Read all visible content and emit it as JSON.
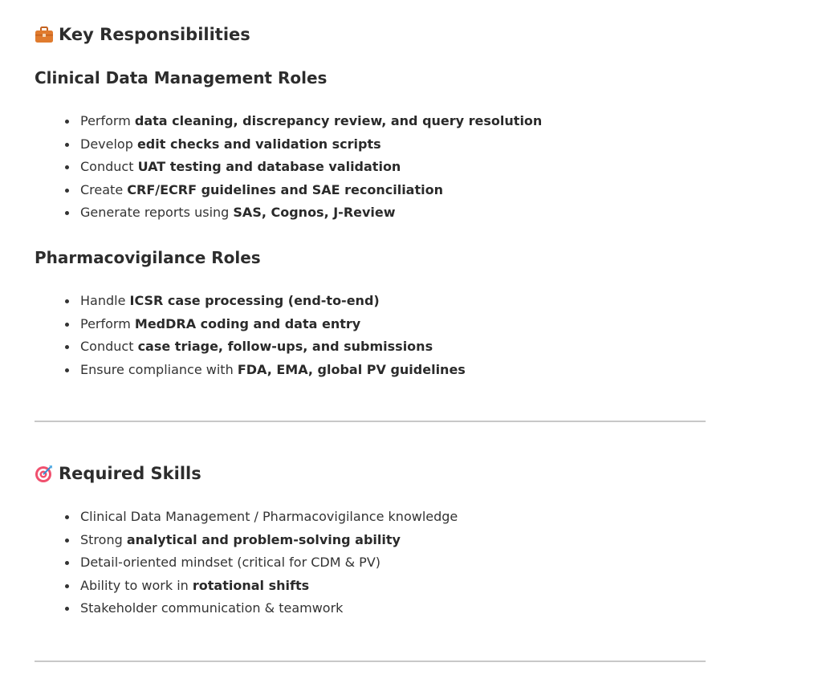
{
  "sections": [
    {
      "title": "Key Responsibilities",
      "icon": "briefcase-icon",
      "subsections": [
        {
          "title": "Clinical Data Management Roles",
          "items": [
            {
              "text": "Perform ",
              "bold": "data cleaning, discrepancy review, and query resolution"
            },
            {
              "text": "Develop ",
              "bold": "edit checks and validation scripts"
            },
            {
              "text": "Conduct ",
              "bold": "UAT testing and database validation"
            },
            {
              "text": "Create ",
              "bold": "CRF/ECRF guidelines and SAE reconciliation"
            },
            {
              "text": "Generate reports using ",
              "bold": "SAS, Cognos, J-Review"
            }
          ]
        },
        {
          "title": "Pharmacovigilance Roles",
          "items": [
            {
              "text": "Handle ",
              "bold": "ICSR case processing (end-to-end)"
            },
            {
              "text": "Perform ",
              "bold": "MedDRA coding and data entry"
            },
            {
              "text": "Conduct ",
              "bold": "case triage, follow-ups, and submissions"
            },
            {
              "text": "Ensure compliance with ",
              "bold": "FDA, EMA, global PV guidelines"
            }
          ]
        }
      ]
    },
    {
      "title": "Required Skills",
      "icon": "target-icon",
      "items": [
        {
          "text": "Clinical Data Management / Pharmacovigilance knowledge",
          "bold": ""
        },
        {
          "text": "Strong ",
          "bold": "analytical and problem-solving ability"
        },
        {
          "text": "Detail-oriented mindset (critical for CDM & PV)",
          "bold": ""
        },
        {
          "text": "Ability to work in ",
          "bold": "rotational shifts"
        },
        {
          "text": "Stakeholder communication & teamwork",
          "bold": ""
        }
      ]
    }
  ],
  "colors": {
    "text": "#333333",
    "divider": "#c8c8c8",
    "briefcase": "#e07b2e",
    "target": "#f0506e"
  }
}
